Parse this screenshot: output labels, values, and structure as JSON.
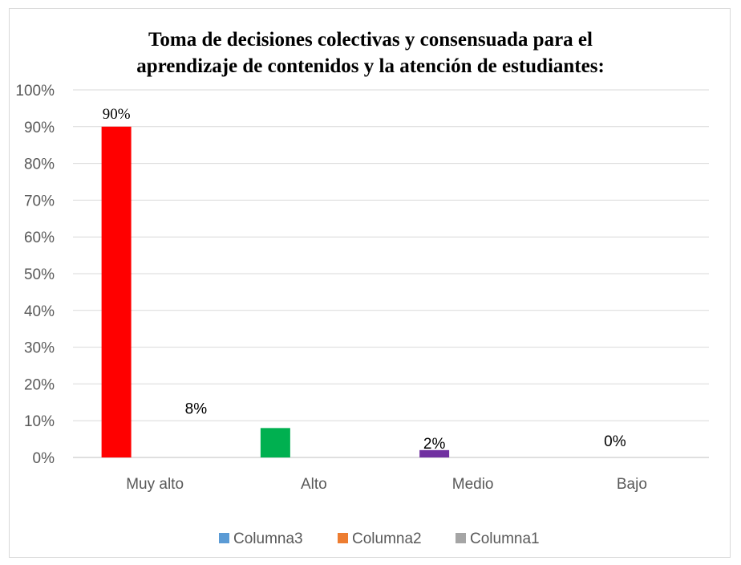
{
  "chart_data": {
    "type": "bar",
    "title_line1": "Toma de decisiones colectivas y consensuada para el",
    "title_line2": "aprendizaje de contenidos y la atención de estudiantes",
    "title_suffix": ":",
    "categories": [
      "Muy alto",
      "Alto",
      "Medio",
      "Bajo"
    ],
    "values": [
      90,
      8,
      2,
      0
    ],
    "data_labels": [
      "90%",
      "8%",
      "2%",
      "0%"
    ],
    "bar_colors": [
      "#ff0000",
      "#00b050",
      "#7030a0",
      "#7f7f7f"
    ],
    "ylim": [
      0,
      100
    ],
    "yticks": [
      "0%",
      "10%",
      "20%",
      "30%",
      "40%",
      "50%",
      "60%",
      "70%",
      "80%",
      "90%",
      "100%"
    ],
    "grid": true,
    "legend_position": "bottom",
    "legend": [
      {
        "name": "Columna3",
        "color": "#5b9bd5"
      },
      {
        "name": "Columna2",
        "color": "#ed7d31"
      },
      {
        "name": "Columna1",
        "color": "#a5a5a5"
      }
    ]
  }
}
